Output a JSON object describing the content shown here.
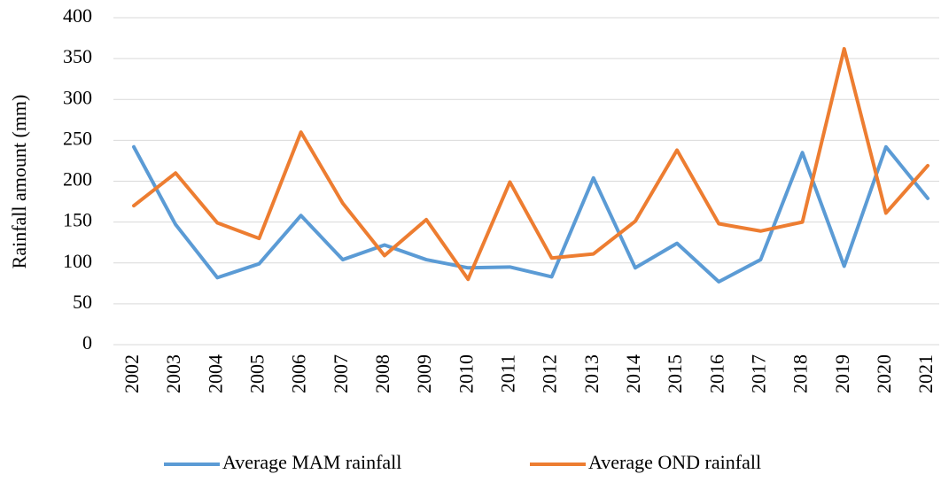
{
  "chart_data": {
    "type": "line",
    "y_label": "Rainfall amount (mm)",
    "categories": [
      "2002",
      "2003",
      "2004",
      "2005",
      "2006",
      "2007",
      "2008",
      "2009",
      "2010",
      "2011",
      "2012",
      "2013",
      "2014",
      "2015",
      "2016",
      "2017",
      "2018",
      "2019",
      "2020",
      "2021"
    ],
    "series": [
      {
        "name": "Average MAM rainfall",
        "color": "#5b9bd5",
        "values": [
          242,
          147,
          82,
          99,
          158,
          104,
          122,
          104,
          94,
          95,
          83,
          204,
          94,
          124,
          77,
          104,
          235,
          96,
          242,
          179
        ]
      },
      {
        "name": "Average OND rainfall",
        "color": "#ed7d31",
        "values": [
          170,
          210,
          149,
          130,
          260,
          173,
          109,
          153,
          80,
          199,
          106,
          111,
          151,
          238,
          148,
          139,
          150,
          362,
          161,
          219
        ]
      }
    ],
    "ylim": [
      0,
      400
    ],
    "yticks": [
      0,
      50,
      100,
      150,
      200,
      250,
      300,
      350,
      400
    ],
    "grid": true,
    "legend": "bottom"
  }
}
